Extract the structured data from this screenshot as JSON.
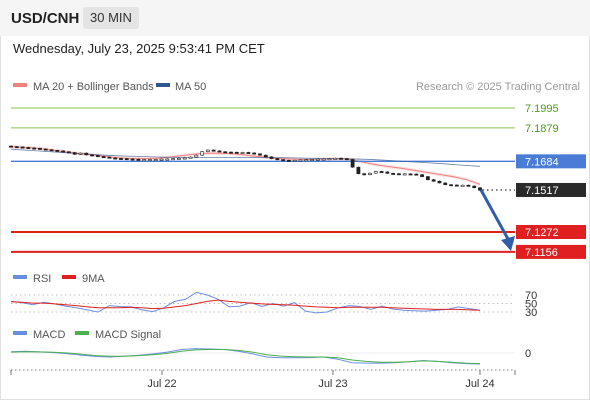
{
  "header": {
    "symbol": "USD/CNH",
    "timeframe": "30 MIN",
    "datetime": "Wednesday, July 23, 2025 9:53:41 PM CET"
  },
  "legend": {
    "ma20": "MA 20 + Bollinger Bands",
    "ma50": "MA 50",
    "credit": "Research © 2025 Trading Central"
  },
  "colors": {
    "ma20": "#f08080",
    "ma50": "#2f5690",
    "resistance": "#8bc34a",
    "pivot": "#4a7bd6",
    "support": "#e02020",
    "arrow": "#2f5fa8",
    "rsi": "#6b8fe0",
    "rsi_ma": "#e02020",
    "macd": "#6b8fe0",
    "macd_signal": "#4caf50"
  },
  "chart_data": [
    {
      "type": "line",
      "title": "USD/CNH 30 MIN",
      "x_ticks": [
        "Jul 22",
        "Jul 23",
        "Jul 24"
      ],
      "levels": [
        {
          "value": 7.1995,
          "label": "7.1995",
          "kind": "resistance"
        },
        {
          "value": 7.1879,
          "label": "7.1879",
          "kind": "resistance"
        },
        {
          "value": 7.1684,
          "label": "7.1684",
          "kind": "pivot"
        },
        {
          "value": 7.1517,
          "label": "7.1517",
          "kind": "last"
        },
        {
          "value": 7.1272,
          "label": "7.1272",
          "kind": "support"
        },
        {
          "value": 7.1156,
          "label": "7.1156",
          "kind": "support"
        }
      ],
      "series": [
        {
          "name": "Price",
          "values": [
            7.177,
            7.1768,
            7.1765,
            7.1762,
            7.176,
            7.1756,
            7.1752,
            7.1748,
            7.1745,
            7.174,
            7.1735,
            7.1725,
            7.1732,
            7.1722,
            7.1718,
            7.1712,
            7.1709,
            7.1704,
            7.1701,
            7.17,
            7.1698,
            7.1696,
            7.1694,
            7.1694,
            7.1695,
            7.1695,
            7.1697,
            7.1698,
            7.17,
            7.1702,
            7.1704,
            7.1709,
            7.172,
            7.174,
            7.175,
            7.1745,
            7.174,
            7.1738,
            7.1737,
            7.1736,
            7.1736,
            7.1733,
            7.1728,
            7.172,
            7.171,
            7.17,
            7.1694,
            7.169,
            7.1688,
            7.169,
            7.1692,
            7.1694,
            7.1695,
            7.1697,
            7.1698,
            7.17,
            7.1702,
            7.17,
            7.1695,
            7.165,
            7.1612,
            7.1606,
            7.1615,
            7.1625,
            7.1622,
            7.1614,
            7.1612,
            7.1611,
            7.1611,
            7.161,
            7.1606,
            7.1595,
            7.1577,
            7.1568,
            7.1558,
            7.1548,
            7.1546,
            7.1545,
            7.1545,
            7.154,
            7.153,
            7.1517
          ]
        },
        {
          "name": "MA 20",
          "values": [
            7.177,
            7.1765,
            7.176,
            7.175,
            7.174,
            7.173,
            7.1722,
            7.1712,
            7.1705,
            7.17,
            7.17,
            7.1702,
            7.171,
            7.172,
            7.1728,
            7.1732,
            7.173,
            7.1725,
            7.1716,
            7.1708,
            7.17,
            7.1697,
            7.1694,
            7.1696,
            7.1698,
            7.1698,
            7.1685,
            7.1668,
            7.1655,
            7.1645,
            7.1633,
            7.162,
            7.1607,
            7.1595,
            7.1577,
            7.155
          ]
        },
        {
          "name": "MA 50",
          "values": [
            7.1755,
            7.1748,
            7.1741,
            7.1734,
            7.1727,
            7.172,
            7.1715,
            7.1712,
            7.1709,
            7.1707,
            7.1706,
            7.1706,
            7.1706,
            7.1706,
            7.1705,
            7.1704,
            7.1702,
            7.17,
            7.1699,
            7.1696,
            7.169,
            7.1683,
            7.1677,
            7.167,
            7.1662,
            7.1655
          ]
        }
      ]
    },
    {
      "type": "line",
      "title": "RSI",
      "y_ticks": [
        70,
        50,
        30
      ],
      "ylim": [
        0,
        100
      ],
      "series": [
        {
          "name": "RSI",
          "values": [
            55,
            52,
            47,
            53,
            49,
            44,
            40,
            35,
            30,
            45,
            43,
            42,
            35,
            31,
            40,
            55,
            60,
            76,
            70,
            60,
            42,
            44,
            52,
            43,
            50,
            44,
            52,
            32,
            28,
            30,
            40,
            45,
            43,
            36,
            44,
            37,
            34,
            33,
            32,
            34,
            36,
            42,
            38,
            34
          ]
        },
        {
          "name": "9MA",
          "values": [
            54,
            53,
            51,
            51,
            49,
            47,
            45,
            42,
            40,
            40,
            40,
            41,
            40,
            38,
            39,
            42,
            45,
            50,
            55,
            58,
            55,
            53,
            51,
            49,
            48,
            47,
            46,
            44,
            42,
            41,
            40,
            41,
            41,
            41,
            41,
            40,
            39,
            38,
            37,
            36,
            36,
            36,
            35,
            34
          ]
        }
      ]
    },
    {
      "type": "line",
      "title": "MACD",
      "y_ticks": [
        0
      ],
      "series": [
        {
          "name": "MACD",
          "values": [
            0.0006,
            0.0008,
            0.0005,
            0.0002,
            -0.0003,
            -0.001,
            -0.0016,
            -0.0018,
            -0.0014,
            -0.001,
            -0.0004,
            0.0004,
            0.0016,
            0.002,
            0.0018,
            0.0016,
            0.0008,
            -0.0004,
            -0.0018,
            -0.0022,
            -0.0022,
            -0.0021,
            -0.0018,
            -0.0028,
            -0.0044,
            -0.0046,
            -0.0046,
            -0.0044,
            -0.004,
            -0.0034,
            -0.0038,
            -0.0044,
            -0.0048,
            -0.005
          ]
        },
        {
          "name": "MACD Signal",
          "values": [
            0.0004,
            0.0006,
            0.0005,
            0.0003,
            0.0,
            -0.0006,
            -0.0012,
            -0.0015,
            -0.0015,
            -0.0012,
            -0.0008,
            -0.0002,
            0.0008,
            0.0014,
            0.0016,
            0.0016,
            0.0012,
            0.0004,
            -0.0008,
            -0.0014,
            -0.0017,
            -0.0018,
            -0.0018,
            -0.0022,
            -0.0032,
            -0.0038,
            -0.0042,
            -0.0042,
            -0.004,
            -0.0036,
            -0.0038,
            -0.0042,
            -0.0046,
            -0.0048
          ]
        }
      ]
    }
  ]
}
